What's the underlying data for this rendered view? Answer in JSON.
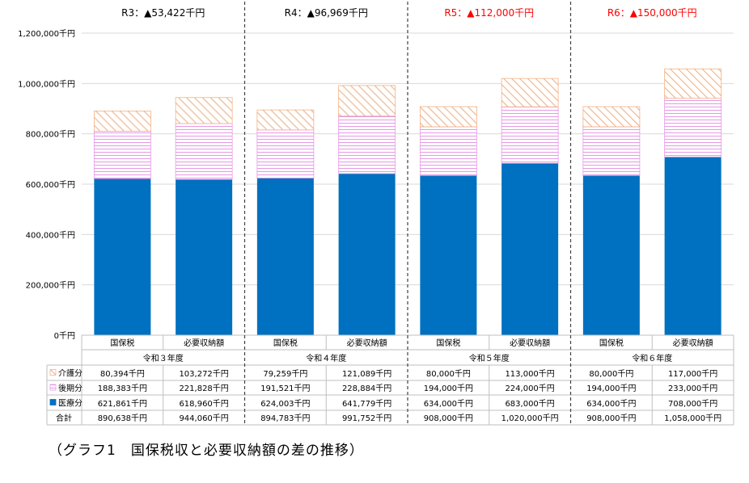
{
  "caption": "（グラフ1　国保税収と必要収納額の差の推移）",
  "colors": {
    "medical": "#0070C0",
    "elderly_stripe": "#E699E6",
    "care_stripe": "#F4B183",
    "gridline": "#D9D9D9",
    "table_border": "#BFBFBF",
    "highlight_text": "#FF0000"
  },
  "chart_data": {
    "type": "bar",
    "stacked": true,
    "ylim": [
      0,
      1200000
    ],
    "y_ticks": [
      "0千円",
      "200,000千円",
      "400,000千円",
      "600,000千円",
      "800,000千円",
      "1,000,000千円",
      "1,200,000千円"
    ],
    "y_tick_values": [
      0,
      200000,
      400000,
      600000,
      800000,
      1000000,
      1200000
    ],
    "grid": true,
    "legend": "in-table-left",
    "groups": [
      {
        "label": "令和３年度",
        "header": "R3：▲53,422千円",
        "header_red": false,
        "categories": [
          "国保税",
          "必要収納額"
        ],
        "medical": [
          621861,
          618960
        ],
        "elderly": [
          188383,
          221828
        ],
        "care": [
          80394,
          103272
        ],
        "medical_text": [
          "621,861千円",
          "618,960千円"
        ],
        "elderly_text": [
          "188,383千円",
          "221,828千円"
        ],
        "care_text": [
          "80,394千円",
          "103,272千円"
        ],
        "total_text": [
          "890,638千円",
          "944,060千円"
        ]
      },
      {
        "label": "令和４年度",
        "header": "R4：▲96,969千円",
        "header_red": false,
        "categories": [
          "国保税",
          "必要収納額"
        ],
        "medical": [
          624003,
          641779
        ],
        "elderly": [
          191521,
          228884
        ],
        "care": [
          79259,
          121089
        ],
        "medical_text": [
          "624,003千円",
          "641,779千円"
        ],
        "elderly_text": [
          "191,521千円",
          "228,884千円"
        ],
        "care_text": [
          "79,259千円",
          "121,089千円"
        ],
        "total_text": [
          "894,783千円",
          "991,752千円"
        ]
      },
      {
        "label": "令和５年度",
        "header": "R5：▲112,000千円",
        "header_red": true,
        "categories": [
          "国保税",
          "必要収納額"
        ],
        "medical": [
          634000,
          683000
        ],
        "elderly": [
          194000,
          224000
        ],
        "care": [
          80000,
          113000
        ],
        "medical_text": [
          "634,000千円",
          "683,000千円"
        ],
        "elderly_text": [
          "194,000千円",
          "224,000千円"
        ],
        "care_text": [
          "80,000千円",
          "113,000千円"
        ],
        "total_text": [
          "908,000千円",
          "1,020,000千円"
        ]
      },
      {
        "label": "令和６年度",
        "header": "R6：▲150,000千円",
        "header_red": true,
        "categories": [
          "国保税",
          "必要収納額"
        ],
        "medical": [
          634000,
          708000
        ],
        "elderly": [
          194000,
          233000
        ],
        "care": [
          80000,
          117000
        ],
        "medical_text": [
          "634,000千円",
          "708,000千円"
        ],
        "elderly_text": [
          "194,000千円",
          "233,000千円"
        ],
        "care_text": [
          "80,000千円",
          "117,000千円"
        ],
        "total_text": [
          "908,000千円",
          "1,058,000千円"
        ]
      }
    ],
    "row_labels": {
      "care": "介護分",
      "elderly": "後期分",
      "medical": "医療分",
      "total": "合計"
    }
  }
}
